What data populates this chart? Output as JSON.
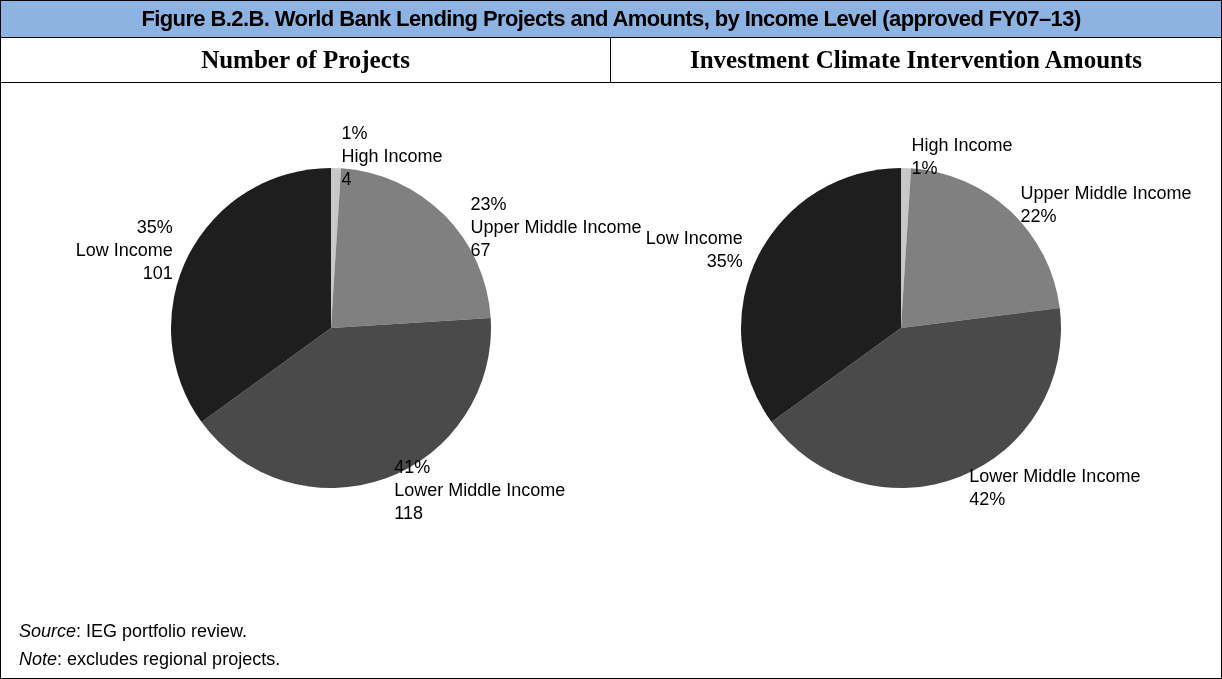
{
  "chart_data": [
    {
      "type": "pie",
      "title": "Figure B.2.B. World Bank Lending Projects and Amounts, by Income Level (approved FY07–13)",
      "subtitle": "Number of Projects",
      "categories": [
        "High Income",
        "Upper Middle Income",
        "Lower Middle Income",
        "Low Income"
      ],
      "values": [
        1,
        23,
        41,
        35
      ],
      "colors": [
        "#c8c8c8",
        "#808080",
        "#4a4a4a",
        "#1e1e1e"
      ],
      "value_labels": [
        "1%",
        "23%",
        "41%",
        "35%"
      ],
      "legend": false,
      "annotations": [
        {
          "text": "4",
          "x": "High Income"
        },
        {
          "text": "67",
          "x": "Upper Middle Income"
        },
        {
          "text": "118",
          "x": "Lower Middle Income"
        },
        {
          "text": "101",
          "x": "Low Income"
        }
      ]
    },
    {
      "type": "pie",
      "subtitle": "Investment Climate Intervention Amounts",
      "categories": [
        "High Income",
        "Upper Middle Income",
        "Lower Middle Income",
        "Low Income"
      ],
      "values": [
        1,
        22,
        42,
        35
      ],
      "colors": [
        "#c8c8c8",
        "#808080",
        "#4a4a4a",
        "#1e1e1e"
      ],
      "value_labels": [
        "1%",
        "22%",
        "42%",
        "35%"
      ],
      "legend": false,
      "annotations": [
        "Source: IEG portfolio review.",
        "Note: excludes regional projects."
      ]
    }
  ]
}
